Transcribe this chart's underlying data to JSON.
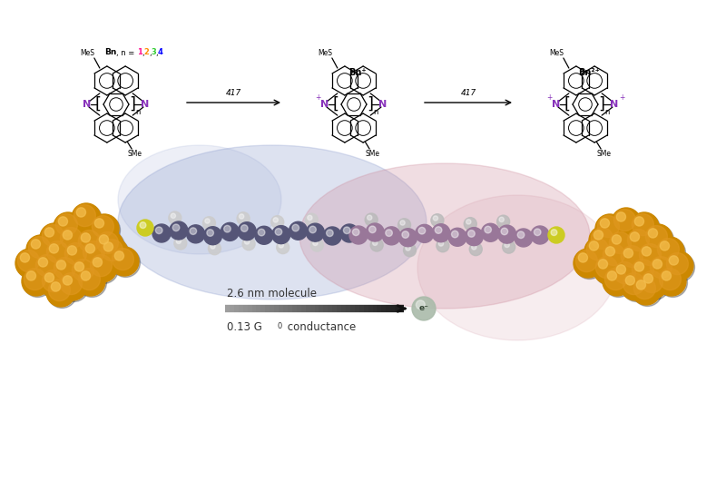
{
  "bg_color": "#ffffff",
  "n_colors": [
    "#ff1493",
    "#ff8c00",
    "#32cd32",
    "#0000ff"
  ],
  "n_numbers": [
    "1",
    ",",
    "2",
    ",",
    "3",
    ",",
    "4"
  ],
  "text_nm": "2.6 nm molecule",
  "text_cond": "0.13 G",
  "text_cond2": "0 conductance",
  "gold_color": "#cc8800",
  "gold_mid": "#e09820",
  "gold_highlight": "#f5c050",
  "blue_blob_color": "#8899cc",
  "red_blob_color": "#cc8899",
  "wire_dark": "#555577",
  "wire_mid": "#997799",
  "sulfur_color": "#cccc22",
  "electron_color": "#aabbaa",
  "n_atom_color": "#8833bb",
  "arrow_color": "#333333"
}
